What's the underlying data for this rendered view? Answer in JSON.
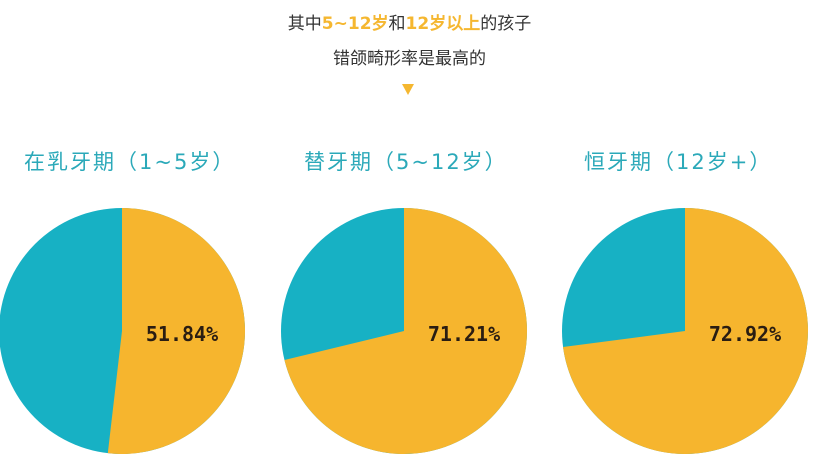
{
  "headline": {
    "line1_pre": "其中",
    "line1_hl1": "5~12岁",
    "line1_mid": "和",
    "line1_hl2": "12岁以上",
    "line1_post": "的孩子",
    "line2": "错颌畸形率是最高的"
  },
  "colors": {
    "orange": "#F6B52E",
    "teal": "#17B1C4",
    "highlight": "#F5B730",
    "label": "#2BA9B9"
  },
  "chart_data": [
    {
      "type": "pie",
      "title": "在乳牙期（1~5岁）",
      "value": 51.84,
      "label": "51.84%"
    },
    {
      "type": "pie",
      "title": "替牙期（5~12岁）",
      "value": 71.21,
      "label": "71.21%"
    },
    {
      "type": "pie",
      "title": "恒牙期（12岁+）",
      "value": 72.92,
      "label": "72.92%"
    }
  ]
}
